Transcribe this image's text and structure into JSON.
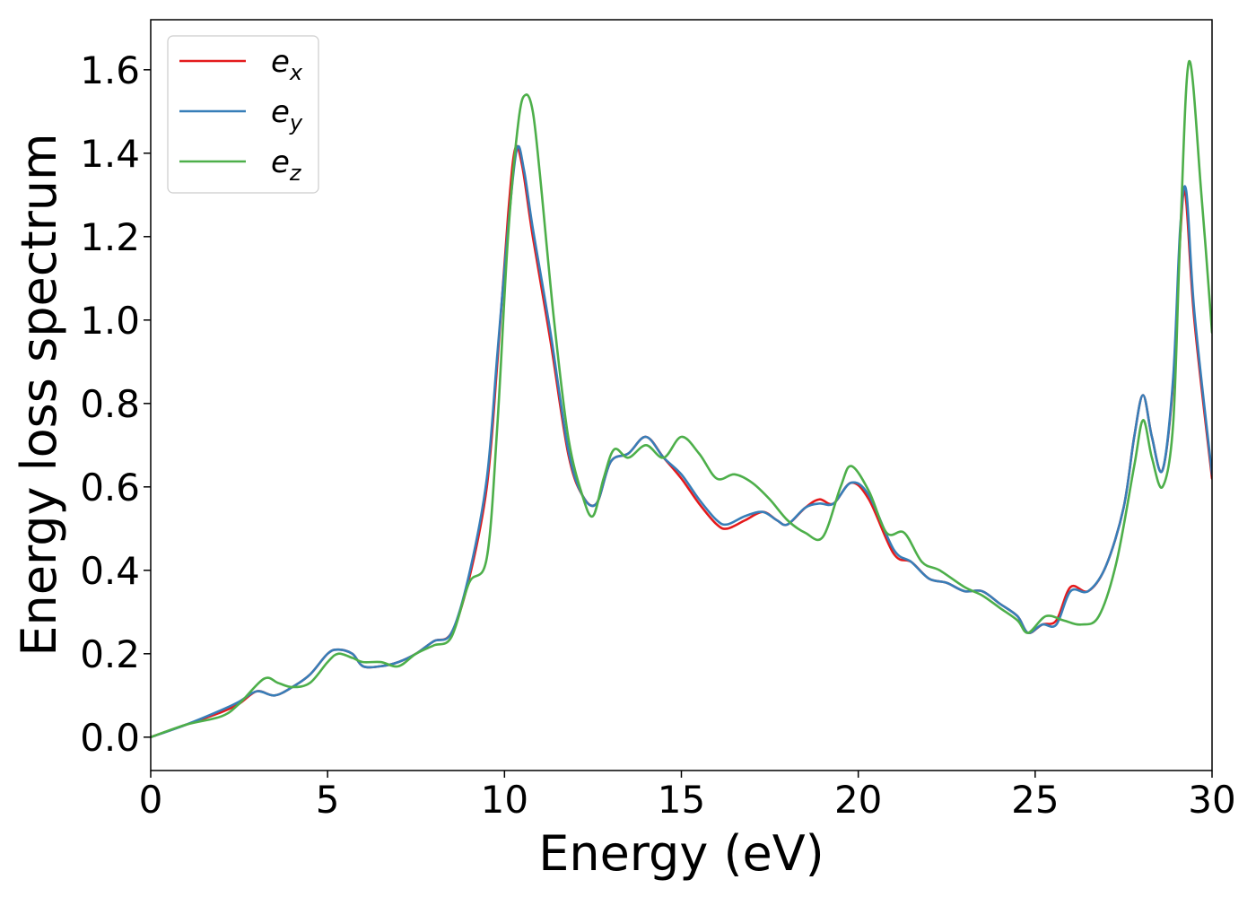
{
  "chart_data": {
    "type": "line",
    "title": "",
    "xlabel": "Energy (eV)",
    "ylabel": "Energy loss spectrum",
    "xlim": [
      0,
      30
    ],
    "ylim": [
      -0.08,
      1.72
    ],
    "xticks": [
      0,
      5,
      10,
      15,
      20,
      25,
      30
    ],
    "yticks": [
      0.0,
      0.2,
      0.4,
      0.6,
      0.8,
      1.0,
      1.2,
      1.4,
      1.6
    ],
    "xtick_labels": [
      "0",
      "5",
      "10",
      "15",
      "20",
      "25",
      "30"
    ],
    "ytick_labels": [
      "0.0",
      "0.2",
      "0.4",
      "0.6",
      "0.8",
      "1.0",
      "1.2",
      "1.4",
      "1.6"
    ],
    "grid": false,
    "legend_position": "top-left",
    "series": [
      {
        "name": "e_x",
        "legend_base": "e",
        "legend_sub": "x",
        "color": "#e41a1c",
        "x": [
          0,
          1,
          2,
          2.5,
          3,
          3.5,
          4,
          4.5,
          5,
          5.3,
          5.7,
          6,
          6.5,
          7,
          7.5,
          8,
          8.5,
          9,
          9.5,
          9.8,
          10.1,
          10.3,
          10.5,
          10.8,
          11.3,
          11.8,
          12.2,
          12.6,
          13,
          13.5,
          14,
          14.5,
          15,
          15.5,
          16,
          16.3,
          16.8,
          17.3,
          17.7,
          18,
          18.5,
          18.9,
          19.3,
          19.8,
          20.3,
          21,
          21.5,
          22,
          22.5,
          23,
          23.5,
          24,
          24.5,
          24.8,
          25.2,
          25.6,
          26,
          26.5,
          27,
          27.5,
          27.8,
          28.05,
          28.3,
          28.6,
          28.9,
          29.1,
          29.25,
          29.5,
          30
        ],
        "y": [
          0,
          0.03,
          0.06,
          0.08,
          0.11,
          0.1,
          0.12,
          0.15,
          0.2,
          0.21,
          0.2,
          0.17,
          0.17,
          0.18,
          0.2,
          0.23,
          0.25,
          0.38,
          0.6,
          0.9,
          1.25,
          1.41,
          1.37,
          1.2,
          0.95,
          0.68,
          0.58,
          0.56,
          0.66,
          0.68,
          0.72,
          0.67,
          0.62,
          0.56,
          0.51,
          0.5,
          0.52,
          0.54,
          0.52,
          0.51,
          0.55,
          0.57,
          0.56,
          0.61,
          0.57,
          0.44,
          0.42,
          0.38,
          0.37,
          0.35,
          0.35,
          0.32,
          0.29,
          0.25,
          0.27,
          0.28,
          0.36,
          0.35,
          0.41,
          0.55,
          0.72,
          0.82,
          0.72,
          0.64,
          0.85,
          1.2,
          1.3,
          1.0,
          0.62
        ]
      },
      {
        "name": "e_y",
        "legend_base": "e",
        "legend_sub": "y",
        "color": "#377eb8",
        "x": [
          0,
          1,
          2,
          2.5,
          3,
          3.5,
          4,
          4.5,
          5,
          5.3,
          5.7,
          6,
          6.5,
          7,
          7.5,
          8,
          8.5,
          9,
          9.5,
          9.8,
          10.1,
          10.35,
          10.55,
          10.8,
          11.3,
          11.8,
          12.2,
          12.6,
          13,
          13.5,
          14,
          14.5,
          15,
          15.5,
          16,
          16.3,
          16.8,
          17.3,
          17.7,
          18,
          18.5,
          18.9,
          19.3,
          19.8,
          20.3,
          21,
          21.5,
          22,
          22.5,
          23,
          23.5,
          24,
          24.5,
          24.8,
          25.2,
          25.6,
          26,
          26.5,
          27,
          27.5,
          27.8,
          28.05,
          28.3,
          28.6,
          28.9,
          29.1,
          29.27,
          29.5,
          30
        ],
        "y": [
          0,
          0.03,
          0.065,
          0.085,
          0.11,
          0.1,
          0.12,
          0.15,
          0.2,
          0.21,
          0.2,
          0.17,
          0.17,
          0.18,
          0.2,
          0.23,
          0.25,
          0.39,
          0.62,
          0.92,
          1.22,
          1.41,
          1.36,
          1.22,
          0.97,
          0.69,
          0.58,
          0.56,
          0.66,
          0.68,
          0.72,
          0.67,
          0.63,
          0.57,
          0.52,
          0.51,
          0.53,
          0.54,
          0.52,
          0.51,
          0.55,
          0.56,
          0.56,
          0.61,
          0.58,
          0.45,
          0.42,
          0.38,
          0.37,
          0.35,
          0.35,
          0.32,
          0.29,
          0.25,
          0.27,
          0.27,
          0.35,
          0.35,
          0.41,
          0.55,
          0.72,
          0.82,
          0.72,
          0.64,
          0.86,
          1.22,
          1.31,
          1.02,
          0.63
        ]
      },
      {
        "name": "e_z",
        "legend_base": "e",
        "legend_sub": "z",
        "color": "#4daf4a",
        "x": [
          0,
          1,
          2,
          2.5,
          3.2,
          3.6,
          4,
          4.5,
          5,
          5.3,
          5.7,
          6,
          6.5,
          7,
          7.5,
          8,
          8.5,
          9,
          9.5,
          9.8,
          10.1,
          10.4,
          10.6,
          10.8,
          11,
          11.4,
          11.8,
          12.2,
          12.5,
          12.8,
          13.1,
          13.5,
          14,
          14.5,
          15,
          15.5,
          16,
          16.5,
          17,
          17.5,
          18,
          18.5,
          19,
          19.5,
          19.8,
          20.3,
          20.8,
          21.3,
          21.8,
          22.3,
          23,
          23.5,
          24,
          24.5,
          24.8,
          25.3,
          25.8,
          26.3,
          26.8,
          27.3,
          27.8,
          28.05,
          28.3,
          28.6,
          28.9,
          29.1,
          29.35,
          29.7,
          30
        ],
        "y": [
          0,
          0.03,
          0.05,
          0.08,
          0.14,
          0.13,
          0.12,
          0.13,
          0.18,
          0.2,
          0.19,
          0.18,
          0.18,
          0.17,
          0.2,
          0.22,
          0.24,
          0.37,
          0.43,
          0.75,
          1.2,
          1.48,
          1.54,
          1.5,
          1.35,
          1.0,
          0.72,
          0.58,
          0.53,
          0.62,
          0.69,
          0.67,
          0.7,
          0.67,
          0.72,
          0.68,
          0.62,
          0.63,
          0.61,
          0.57,
          0.52,
          0.49,
          0.48,
          0.6,
          0.65,
          0.59,
          0.49,
          0.49,
          0.42,
          0.4,
          0.36,
          0.34,
          0.31,
          0.28,
          0.25,
          0.29,
          0.28,
          0.27,
          0.29,
          0.42,
          0.65,
          0.76,
          0.67,
          0.6,
          0.75,
          1.2,
          1.62,
          1.3,
          0.97
        ]
      }
    ]
  }
}
